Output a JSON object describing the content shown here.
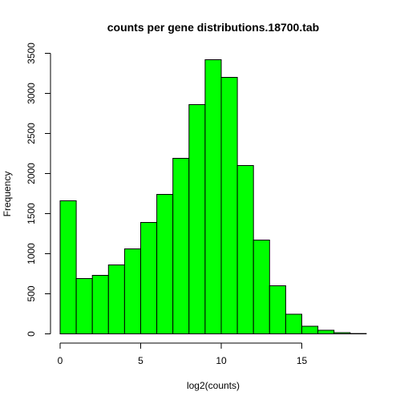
{
  "chart_data": {
    "type": "bar",
    "title": "counts per gene distributions.18700.tab",
    "xlabel": "log2(counts)",
    "ylabel": "Frequency",
    "bin_width": 1,
    "bins": [
      {
        "start": 0,
        "end": 1,
        "value": 1660
      },
      {
        "start": 1,
        "end": 2,
        "value": 690
      },
      {
        "start": 2,
        "end": 3,
        "value": 730
      },
      {
        "start": 3,
        "end": 4,
        "value": 860
      },
      {
        "start": 4,
        "end": 5,
        "value": 1060
      },
      {
        "start": 5,
        "end": 6,
        "value": 1390
      },
      {
        "start": 6,
        "end": 7,
        "value": 1740
      },
      {
        "start": 7,
        "end": 8,
        "value": 2190
      },
      {
        "start": 8,
        "end": 9,
        "value": 2860
      },
      {
        "start": 9,
        "end": 10,
        "value": 3420
      },
      {
        "start": 10,
        "end": 11,
        "value": 3200
      },
      {
        "start": 11,
        "end": 12,
        "value": 2100
      },
      {
        "start": 12,
        "end": 13,
        "value": 1170
      },
      {
        "start": 13,
        "end": 14,
        "value": 600
      },
      {
        "start": 14,
        "end": 15,
        "value": 245
      },
      {
        "start": 15,
        "end": 16,
        "value": 95
      },
      {
        "start": 16,
        "end": 17,
        "value": 45
      },
      {
        "start": 17,
        "end": 18,
        "value": 15
      },
      {
        "start": 18,
        "end": 19,
        "value": 4
      }
    ],
    "xlim": [
      0,
      19
    ],
    "ylim": [
      0,
      3500
    ],
    "x_ticks": [
      0,
      5,
      10,
      15
    ],
    "y_ticks": [
      0,
      500,
      1000,
      1500,
      2000,
      2500,
      3000,
      3500
    ],
    "bar_color": "#00ff00",
    "grid": false,
    "legend": "none"
  }
}
